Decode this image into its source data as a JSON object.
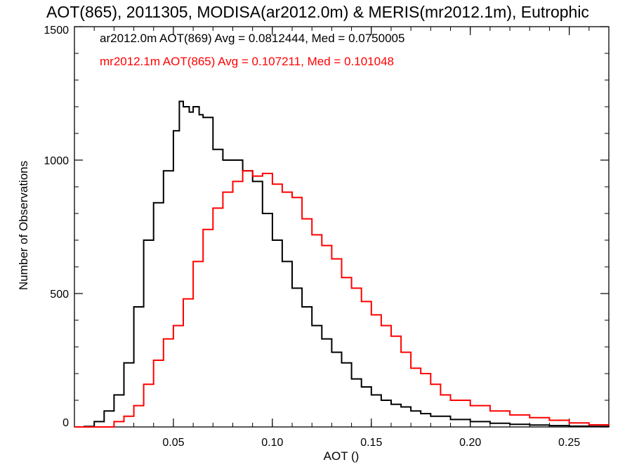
{
  "chart_data": {
    "type": "line",
    "title": "AOT(865), 2011305, MODISA(ar2012.0m) & MERIS(mr2012.1m), Eutrophic",
    "xlabel": "AOT ()",
    "ylabel": "Number of Observations",
    "xlim": [
      0.0,
      0.27
    ],
    "ylim": [
      0,
      1500
    ],
    "x_ticks": [
      {
        "value": 0.05,
        "label": "0.05"
      },
      {
        "value": 0.1,
        "label": "0.10"
      },
      {
        "value": 0.15,
        "label": "0.15"
      },
      {
        "value": 0.2,
        "label": "0.20"
      },
      {
        "value": 0.25,
        "label": "0.25"
      }
    ],
    "y_ticks": [
      {
        "value": 0,
        "label": "0"
      },
      {
        "value": 500,
        "label": "500"
      },
      {
        "value": 1000,
        "label": "1000"
      },
      {
        "value": 1500,
        "label": "1500"
      }
    ],
    "grid": false,
    "legend_position": "top-left",
    "series": [
      {
        "name": "ar2012.0m AOT(869)",
        "legend_text": "ar2012.0m AOT(869) Avg = 0.0812444, Med = 0.0750005",
        "color": "#000000",
        "x": [
          0.0,
          0.005,
          0.01,
          0.015,
          0.02,
          0.025,
          0.03,
          0.035,
          0.04,
          0.045,
          0.05,
          0.053,
          0.055,
          0.058,
          0.06,
          0.063,
          0.065,
          0.07,
          0.075,
          0.08,
          0.085,
          0.09,
          0.095,
          0.1,
          0.105,
          0.11,
          0.115,
          0.12,
          0.125,
          0.13,
          0.135,
          0.14,
          0.145,
          0.15,
          0.155,
          0.16,
          0.165,
          0.17,
          0.175,
          0.18,
          0.19,
          0.2,
          0.21,
          0.22,
          0.23,
          0.24,
          0.25,
          0.26,
          0.27
        ],
        "y": [
          0,
          2,
          20,
          60,
          120,
          240,
          450,
          700,
          840,
          960,
          1110,
          1220,
          1200,
          1180,
          1200,
          1170,
          1160,
          1040,
          1000,
          1000,
          960,
          920,
          800,
          700,
          620,
          520,
          450,
          380,
          330,
          280,
          240,
          180,
          150,
          120,
          100,
          85,
          75,
          60,
          50,
          40,
          28,
          20,
          14,
          10,
          7,
          5,
          3,
          2,
          1
        ]
      },
      {
        "name": "mr2012.1m AOT(865)",
        "legend_text": "mr2012.1m AOT(865) Avg = 0.107211, Med = 0.101048",
        "color": "#ff0000",
        "x": [
          0.0,
          0.01,
          0.02,
          0.025,
          0.03,
          0.035,
          0.04,
          0.045,
          0.05,
          0.055,
          0.06,
          0.065,
          0.07,
          0.075,
          0.08,
          0.085,
          0.09,
          0.095,
          0.1,
          0.105,
          0.11,
          0.115,
          0.12,
          0.125,
          0.13,
          0.135,
          0.14,
          0.145,
          0.15,
          0.155,
          0.16,
          0.165,
          0.17,
          0.175,
          0.18,
          0.185,
          0.19,
          0.2,
          0.21,
          0.22,
          0.23,
          0.24,
          0.25,
          0.26,
          0.27
        ],
        "y": [
          0,
          0,
          20,
          40,
          80,
          160,
          250,
          330,
          380,
          480,
          620,
          740,
          820,
          880,
          920,
          960,
          940,
          950,
          910,
          880,
          860,
          780,
          720,
          680,
          630,
          560,
          520,
          470,
          420,
          380,
          340,
          280,
          220,
          200,
          160,
          120,
          100,
          80,
          60,
          45,
          35,
          25,
          15,
          8,
          5
        ]
      }
    ]
  }
}
